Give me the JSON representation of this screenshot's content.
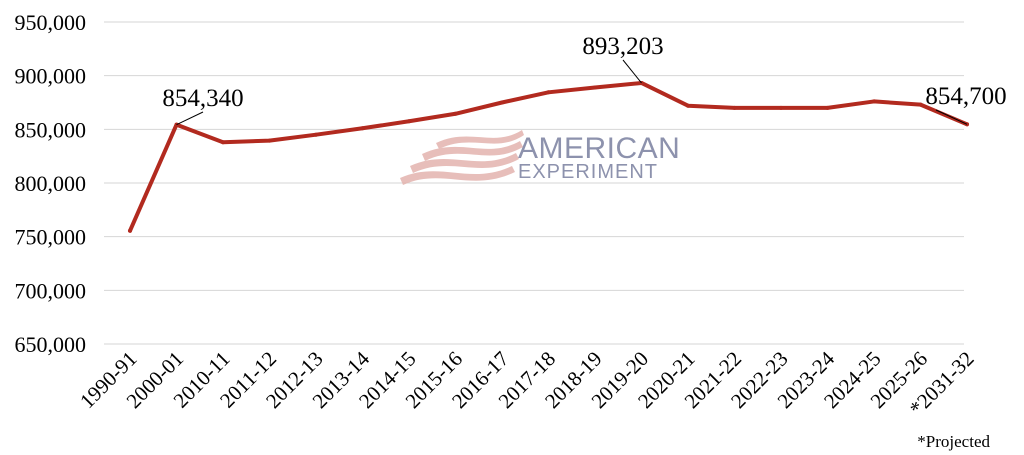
{
  "chart_data": {
    "type": "line",
    "categories": [
      "1990-91",
      "2000-01",
      "2010-11",
      "2011-12",
      "2012-13",
      "2013-14",
      "2014-15",
      "2015-16",
      "2016-17",
      "2017-18",
      "2018-19",
      "2019-20",
      "2020-21",
      "2021-22",
      "2022-23",
      "2023-24",
      "2024-25",
      "2025-26",
      "*2031-32"
    ],
    "series": [
      {
        "values": [
          755500,
          854340,
          838000,
          839500,
          845000,
          851000,
          857500,
          864500,
          875000,
          884500,
          889000,
          893203,
          872000,
          870000,
          870000,
          870000,
          876000,
          873000,
          854700
        ]
      }
    ],
    "ylim": [
      650000,
      950000
    ],
    "yticks": [
      650000,
      700000,
      750000,
      800000,
      850000,
      900000,
      950000
    ],
    "ytick_labels": [
      "650,000",
      "700,000",
      "750,000",
      "800,000",
      "850,000",
      "900,000",
      "950,000"
    ],
    "grid": true,
    "line_color": "#b22a1f",
    "annotations": [
      {
        "index": 1,
        "label": "854,340"
      },
      {
        "index": 11,
        "label": "893,203"
      },
      {
        "index": 18,
        "label": "854,700"
      }
    ],
    "footnote": "*Projected"
  },
  "watermark": {
    "line1": "AMERICAN",
    "line2": "EXPERIMENT",
    "text_color": "#8d92ad",
    "flag_color": "#e3b3ae"
  }
}
